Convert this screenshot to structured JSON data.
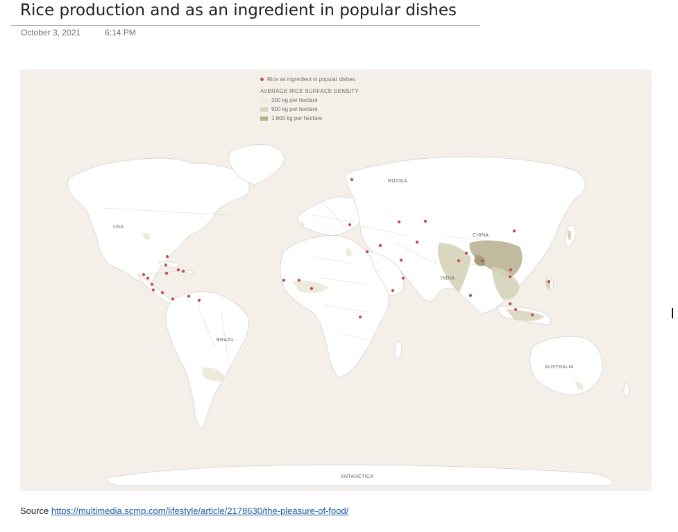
{
  "page": {
    "title": "Rice production and as an ingredient in popular dishes",
    "date": "October 3, 2021",
    "time": "6:14 PM"
  },
  "map": {
    "legend": {
      "dish_label": "Rice as ingredient in popular dishes",
      "density_heading": "AVERAGE RICE SURFACE DENSITY",
      "density_levels": [
        {
          "label": "200 kg per hectare",
          "color": "#ecebdc"
        },
        {
          "label": "900 kg per hectare",
          "color": "#d5d3b8"
        },
        {
          "label": "1,600 kg per hectare",
          "color": "#b6ae8e"
        }
      ],
      "dish_color": "#c0505a"
    },
    "labels": {
      "russia": "RUSSIA",
      "usa": "USA",
      "china": "CHINA",
      "india": "INDIA",
      "brazil": "BRAZIL",
      "australia": "AUSTRALIA",
      "antarctica": "ANTARCTICA"
    },
    "colors": {
      "ocean": "#f4efe9",
      "land": "#ffffff",
      "border": "#cfcac4"
    }
  },
  "source": {
    "prefix": "Source ",
    "link_text": "https://multimedia.scmp.com/lifestyle/article/2178630/the-pleasure-of-food/"
  }
}
